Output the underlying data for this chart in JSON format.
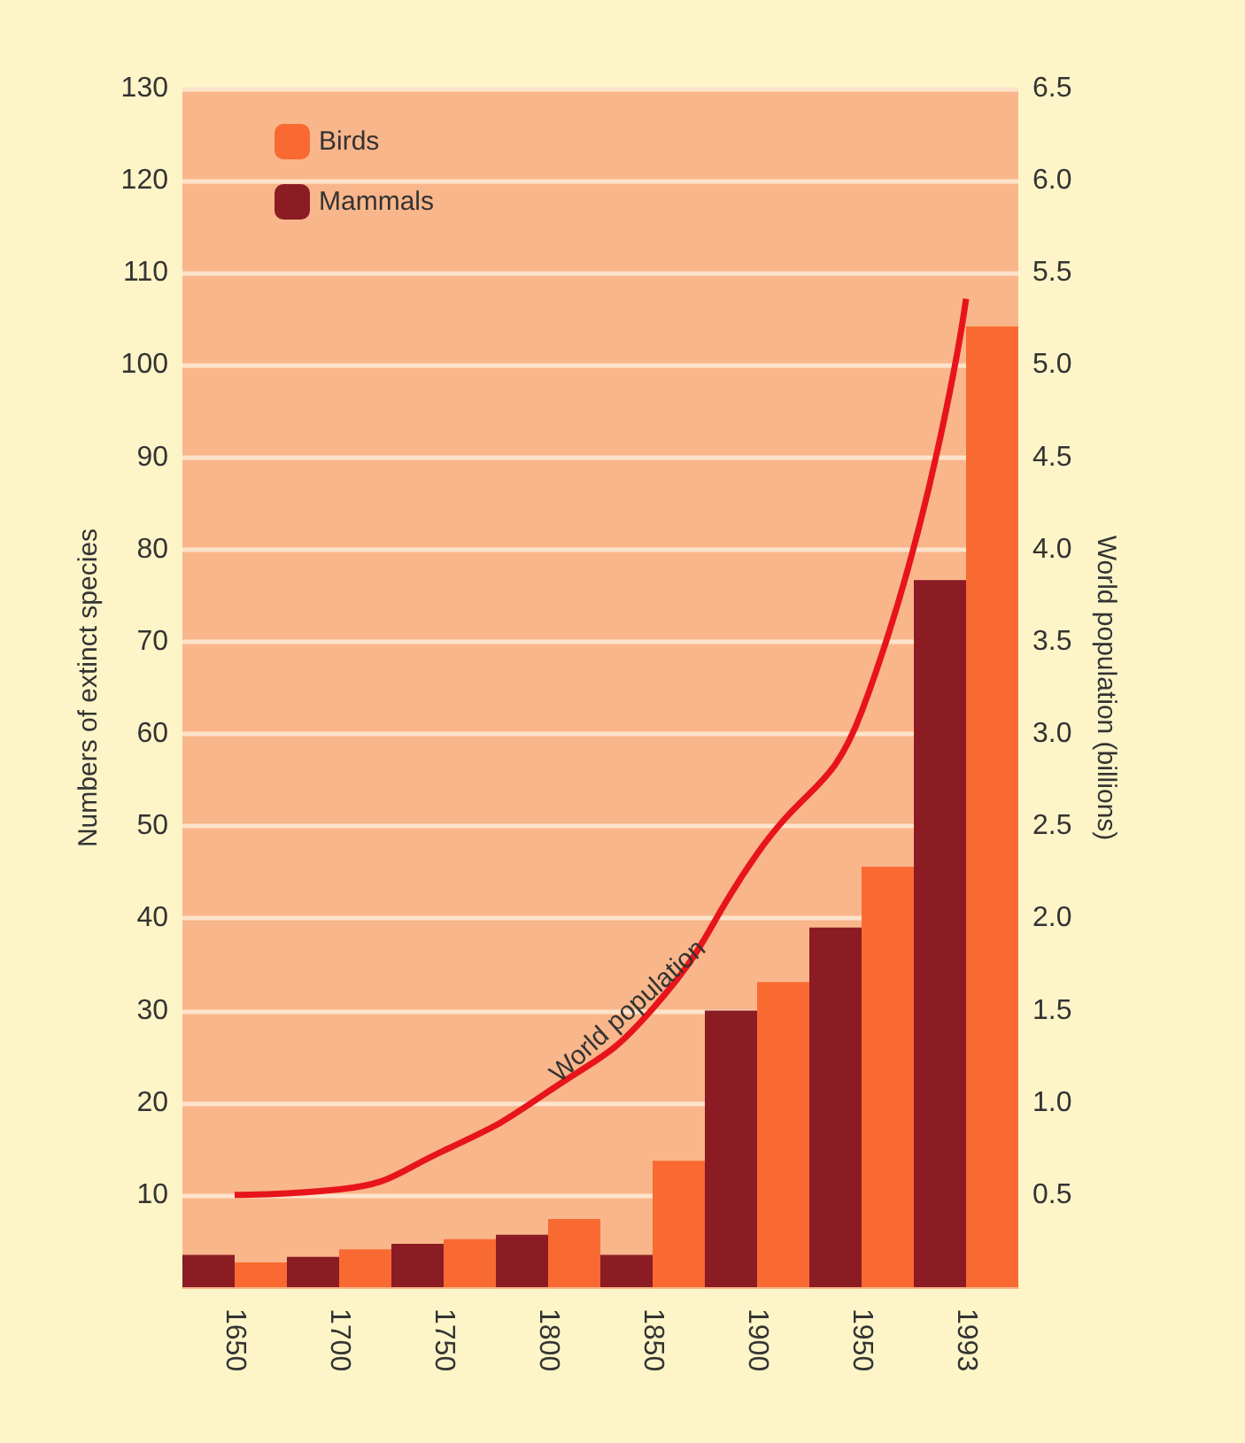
{
  "chart_data": {
    "type": "bar",
    "ylabel": "Numbers of extinct species",
    "y2label": "World population (billions)",
    "categories": [
      "1650",
      "1700",
      "1750",
      "1800",
      "1850",
      "1900",
      "1950",
      "1993"
    ],
    "series": [
      {
        "name": "Mammals",
        "color": "#8b1c24",
        "values": [
          3.5,
          3.3,
          4.7,
          5.7,
          3.5,
          30,
          39,
          76.7
        ]
      },
      {
        "name": "Birds",
        "color": "#f96a32",
        "values": [
          2.7,
          4.1,
          5.2,
          7.4,
          13.7,
          33.1,
          45.6,
          104.2
        ]
      },
      {
        "type": "line",
        "axis": "y2",
        "color": "#e8141b",
        "values": [
          0.5,
          0.53,
          0.74,
          1.06,
          1.51,
          2.35,
          3.12,
          5.36
        ]
      }
    ],
    "annotations": [
      "World population"
    ],
    "ylim": [
      0,
      130
    ],
    "yticks": [
      10,
      20,
      30,
      40,
      50,
      60,
      70,
      80,
      90,
      100,
      110,
      120,
      130
    ],
    "y2lim": [
      0,
      6.5
    ],
    "y2ticks": [
      0.5,
      {
        "value": 1,
        "label": "1.0"
      },
      1.5,
      {
        "value": 2,
        "label": "2.0"
      },
      2.5,
      {
        "value": 3,
        "label": "3.0"
      },
      3.5,
      {
        "value": 4,
        "label": "4.0"
      },
      4.5,
      {
        "value": 5,
        "label": "5.0"
      },
      5.5,
      {
        "value": 6,
        "label": "6.0"
      },
      6.5
    ],
    "grid": "y",
    "legend": "top left",
    "marker": "none"
  }
}
